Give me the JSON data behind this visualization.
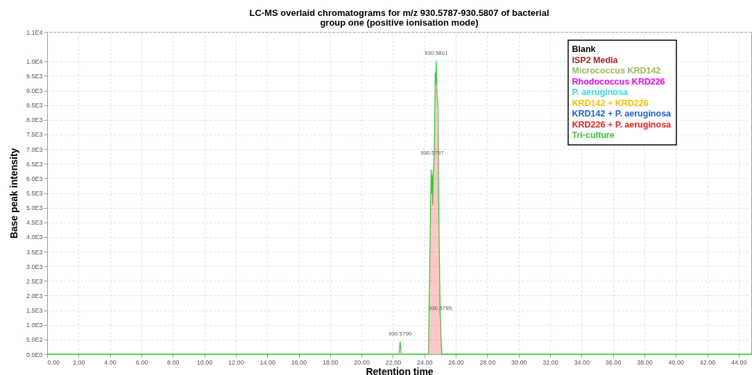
{
  "chart_data": {
    "type": "line",
    "title": "LC-MS overlaid chromatograms for m/z 930.5787-930.5807 of bacterial group one (positive ionisation mode)",
    "xlabel": "Retention time",
    "ylabel": "Base peak intensity",
    "xlim": [
      0,
      44.8
    ],
    "xticks": [
      {
        "value": 0,
        "label": "0.00"
      },
      {
        "value": 2,
        "label": "2.00"
      },
      {
        "value": 4,
        "label": "4.00"
      },
      {
        "value": 6,
        "label": "6.00"
      },
      {
        "value": 8,
        "label": "8.00"
      },
      {
        "value": 10,
        "label": "10.00"
      },
      {
        "value": 12,
        "label": "12.00"
      },
      {
        "value": 14,
        "label": "14.00"
      },
      {
        "value": 16,
        "label": "16.00"
      },
      {
        "value": 18,
        "label": "18.00"
      },
      {
        "value": 20,
        "label": "20.00"
      },
      {
        "value": 22,
        "label": "22.00"
      },
      {
        "value": 24,
        "label": "24.00"
      },
      {
        "value": 26,
        "label": "26.00"
      },
      {
        "value": 28,
        "label": "28.00"
      },
      {
        "value": 30,
        "label": "30.00"
      },
      {
        "value": 32,
        "label": "32.00"
      },
      {
        "value": 34,
        "label": "34.00"
      },
      {
        "value": 36,
        "label": "36.00"
      },
      {
        "value": 38,
        "label": "38.00"
      },
      {
        "value": 40,
        "label": "40.00"
      },
      {
        "value": 42,
        "label": "42.00"
      },
      {
        "value": 44,
        "label": "44.00"
      }
    ],
    "ylim": [
      0,
      11000
    ],
    "yticks": [
      {
        "value": 0,
        "label": "0.0E0"
      },
      {
        "value": 500,
        "label": "5.0E2"
      },
      {
        "value": 1000,
        "label": "1.0E3"
      },
      {
        "value": 1500,
        "label": "1.5E3"
      },
      {
        "value": 2000,
        "label": "2.0E3"
      },
      {
        "value": 2500,
        "label": "2.5E3"
      },
      {
        "value": 3000,
        "label": "3.0E3"
      },
      {
        "value": 3500,
        "label": "3.5E3"
      },
      {
        "value": 4000,
        "label": "4.0E3"
      },
      {
        "value": 4500,
        "label": "4.5E3"
      },
      {
        "value": 5000,
        "label": "5.0E3"
      },
      {
        "value": 5500,
        "label": "5.5E3"
      },
      {
        "value": 6000,
        "label": "6.0E3"
      },
      {
        "value": 6500,
        "label": "6.5E3"
      },
      {
        "value": 7000,
        "label": "7.0E3"
      },
      {
        "value": 7500,
        "label": "7.5E3"
      },
      {
        "value": 8000,
        "label": "8.0E3"
      },
      {
        "value": 8500,
        "label": "8.5E3"
      },
      {
        "value": 9000,
        "label": "9.0E3"
      },
      {
        "value": 9500,
        "label": "9.5E3"
      },
      {
        "value": 10000,
        "label": "1.0E4"
      },
      {
        "value": 11000,
        "label": "1.1E4"
      }
    ],
    "grid": true,
    "legend": "top right",
    "marker": "none",
    "annotations": [
      {
        "text": "930.5790",
        "x": 22.46,
        "y": 430
      },
      {
        "text": "930.5797",
        "x": 24.5,
        "y": 6600
      },
      {
        "text": "930.5801",
        "x": 24.75,
        "y": 10000
      },
      {
        "text": "930.5795",
        "x": 25.0,
        "y": 1300
      }
    ],
    "series": [
      {
        "name": "Blank",
        "color": "#000000"
      },
      {
        "name": "ISP2 Media",
        "color": "#b22222"
      },
      {
        "name": "Micrococcus KRD142",
        "color": "#9bbb59"
      },
      {
        "name": "Rhodococcus KRD226",
        "color": "#ff00ff"
      },
      {
        "name": "P. aeruginosa",
        "color": "#33dcec"
      },
      {
        "name": "KRD142 + KRD226",
        "color": "#ffc000"
      },
      {
        "name": "KRD142 + P. aeruginosa",
        "color": "#1f5fe0"
      },
      {
        "name": "KRD226 + P. aeruginosa",
        "type": "area",
        "color": "#ff2020",
        "x": [
          24.26,
          24.45,
          24.6,
          24.72,
          24.8,
          24.9,
          25.0,
          25.1
        ],
        "values": [
          0,
          6000,
          6500,
          9500,
          8500,
          5500,
          1300,
          0
        ]
      },
      {
        "name": "Tri-culture",
        "color": "#33cc33",
        "x": [
          0,
          22.38,
          22.46,
          22.52,
          24.26,
          24.34,
          24.43,
          24.47,
          24.5,
          24.53,
          24.57,
          24.62,
          24.66,
          24.69,
          24.72,
          24.75,
          24.81,
          24.87,
          24.9,
          25.0,
          25.03,
          25.06,
          25.1,
          44.8
        ],
        "values": [
          0,
          0,
          430,
          0,
          0,
          3000,
          6300,
          5500,
          6100,
          5100,
          6200,
          6700,
          8000,
          9600,
          9200,
          10000,
          8700,
          8400,
          5600,
          1300,
          1200,
          500,
          0,
          0
        ]
      }
    ]
  }
}
